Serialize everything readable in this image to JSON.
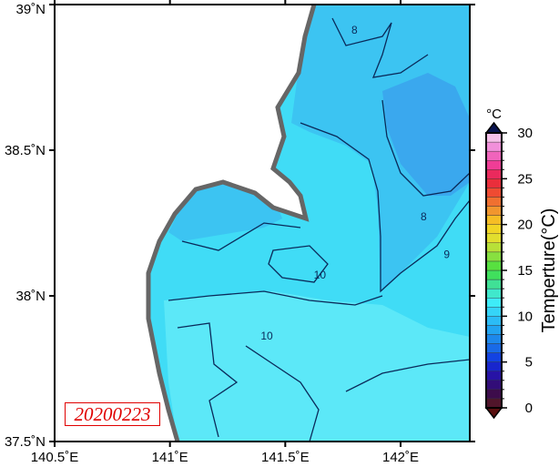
{
  "map": {
    "lon_range": [
      140.5,
      142.3
    ],
    "lat_range": [
      37.5,
      39.0
    ],
    "x_ticks": [
      {
        "value": 140.5,
        "label": "140.5˚E"
      },
      {
        "value": 141,
        "label": "141˚E"
      },
      {
        "value": 141.5,
        "label": "141.5˚E"
      },
      {
        "value": 142,
        "label": "142˚E"
      }
    ],
    "y_ticks": [
      {
        "value": 39,
        "label": "39˚N"
      },
      {
        "value": 38.5,
        "label": "38.5˚N"
      },
      {
        "value": 38,
        "label": "38˚N"
      },
      {
        "value": 37.5,
        "label": "37.5˚N"
      }
    ],
    "date_label": "20200223",
    "contour_labels": [
      {
        "text": "8",
        "lon": 141.8,
        "lat": 38.9
      },
      {
        "text": "8",
        "lon": 142.1,
        "lat": 38.26
      },
      {
        "text": "9",
        "lon": 142.2,
        "lat": 38.13
      },
      {
        "text": "10",
        "lon": 141.65,
        "lat": 38.06
      },
      {
        "text": "10",
        "lon": 141.42,
        "lat": 37.85
      }
    ],
    "colors": {
      "land": "#ffffff",
      "coast": "#666666",
      "sea_10": "#40dcf6",
      "sea_11": "#5ce8f8",
      "sea_9": "#3cc4f2",
      "sea_8": "#3aa8ee",
      "contour": "#0a2a5a"
    }
  },
  "colorbar": {
    "unit": "°C",
    "label": "Temperture(°C)",
    "range": [
      0,
      30
    ],
    "ticks": [
      "0",
      "5",
      "10",
      "15",
      "20",
      "25",
      "30"
    ],
    "color_stops": [
      "#5a1a1a",
      "#3a0a50",
      "#2a10a0",
      "#1030e0",
      "#1a70e8",
      "#20a0f0",
      "#30c8f8",
      "#40f0f8",
      "#40e0a0",
      "#40e040",
      "#90e040",
      "#e0e030",
      "#f8d020",
      "#f09030",
      "#f05030",
      "#e82040",
      "#f040a0",
      "#f088d8",
      "#f8d8f0"
    ],
    "top_arrow_color": "#0a1450",
    "bottom_arrow_color": "#5a1010"
  }
}
